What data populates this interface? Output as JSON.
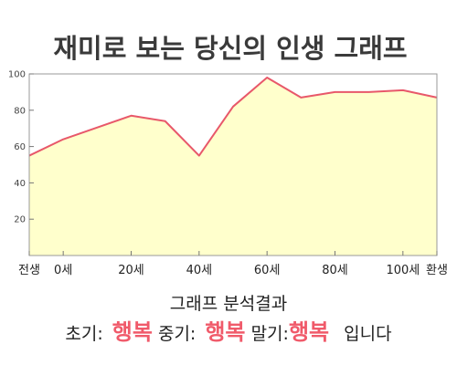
{
  "chart_data": {
    "type": "area",
    "title": "재미로 보는 당신의 인생 그래프",
    "x_ticks": [
      "전생",
      "0세",
      "20세",
      "40세",
      "60세",
      "80세",
      "100세",
      "환생"
    ],
    "y_ticks": [
      20,
      40,
      60,
      80,
      100
    ],
    "ylim": [
      0,
      100
    ],
    "x": [
      -10,
      0,
      20,
      30,
      40,
      50,
      60,
      70,
      80,
      90,
      100,
      110
    ],
    "values": [
      55,
      64,
      77,
      74,
      55,
      82,
      98,
      87,
      90,
      90,
      91,
      87
    ],
    "grid": false,
    "fill_color": "#ffffcc",
    "line_color": "#e8586a",
    "axis_color": "#999999"
  },
  "result": {
    "heading": "그래프 분석결과",
    "early_label": "초기:",
    "early_value": "행복",
    "middle_label": "중기:",
    "middle_value": "행복",
    "late_label": "말기:",
    "late_value": "행복",
    "ending": "입니다"
  }
}
